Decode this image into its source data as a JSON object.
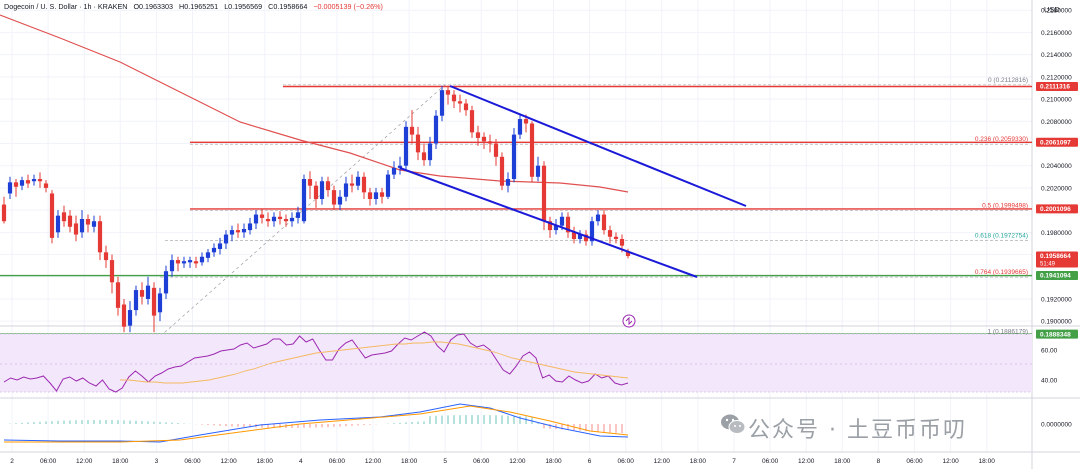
{
  "header": {
    "symbol": "Dogecoin / U. S. Dollar · 1h · KRAKEN",
    "open": "O0.1963303",
    "high": "H0.1965251",
    "low": "L0.1956569",
    "close": "C0.1958664",
    "change": "−0.0005139 (−0.26%)"
  },
  "axis": {
    "currency": "USD",
    "ticks": [
      "0.2180000",
      "0.2160000",
      "0.2140000",
      "0.2120000",
      "0.2100000",
      "0.2080000",
      "0.2060000",
      "0.2040000",
      "0.2020000",
      "0.2000000",
      "0.1980000",
      "0.1960000",
      "0.1940000",
      "0.1920000",
      "0.1900000"
    ],
    "badges": [
      {
        "label": "0.2111316",
        "price": 0.2111316,
        "color": "#e53935"
      },
      {
        "label": "0.2061097",
        "price": 0.2061097,
        "color": "#e53935"
      },
      {
        "label": "0.2001096",
        "price": 0.2001096,
        "color": "#e53935"
      },
      {
        "label": "0.1958664",
        "sub": "51:49",
        "price": 0.1958664,
        "color": "#e53935"
      },
      {
        "label": "0.1941094",
        "price": 0.1941094,
        "color": "#43a047"
      },
      {
        "label": "0.1888348",
        "price": 0.1888348,
        "color": "#43a047"
      }
    ],
    "rsi_ticks": [
      "60.00",
      "40.00"
    ],
    "macd_tick": "0.0000000"
  },
  "fib": [
    {
      "label": "0 (0.2112816)",
      "price": 0.2112816
    },
    {
      "label": "0.236 (0.2059330)",
      "price": 0.205933
    },
    {
      "label": "0.5 (0.1999498)",
      "price": 0.1999498
    },
    {
      "label": "0.618 (0.1972754)",
      "price": 0.1972754
    },
    {
      "label": "0.764 (0.1939665)",
      "price": 0.1939665
    },
    {
      "label": "1 (0.1886179)",
      "price": 0.1886179
    }
  ],
  "time_axis": [
    "2",
    "06:00",
    "12:00",
    "18:00",
    "3",
    "06:00",
    "12:00",
    "18:00",
    "4",
    "06:00",
    "12:00",
    "18:00",
    "5",
    "06:00",
    "12:00",
    "18:00",
    "6",
    "06:00",
    "12:00",
    "18:00",
    "7",
    "06:00",
    "12:00",
    "18:00",
    "8",
    "06:00",
    "12:00",
    "18:00"
  ],
  "colors": {
    "up": "#1e3fd6",
    "down": "#e53935",
    "ma": "#e05050",
    "channel": "#1a1ad8",
    "support": "#43a047",
    "resistance": "#e53935",
    "rsi": "#9c27b0",
    "macd": "#2962ff",
    "signal": "#ff9800"
  },
  "watermark": "公众号 · 土豆币币叨"
}
